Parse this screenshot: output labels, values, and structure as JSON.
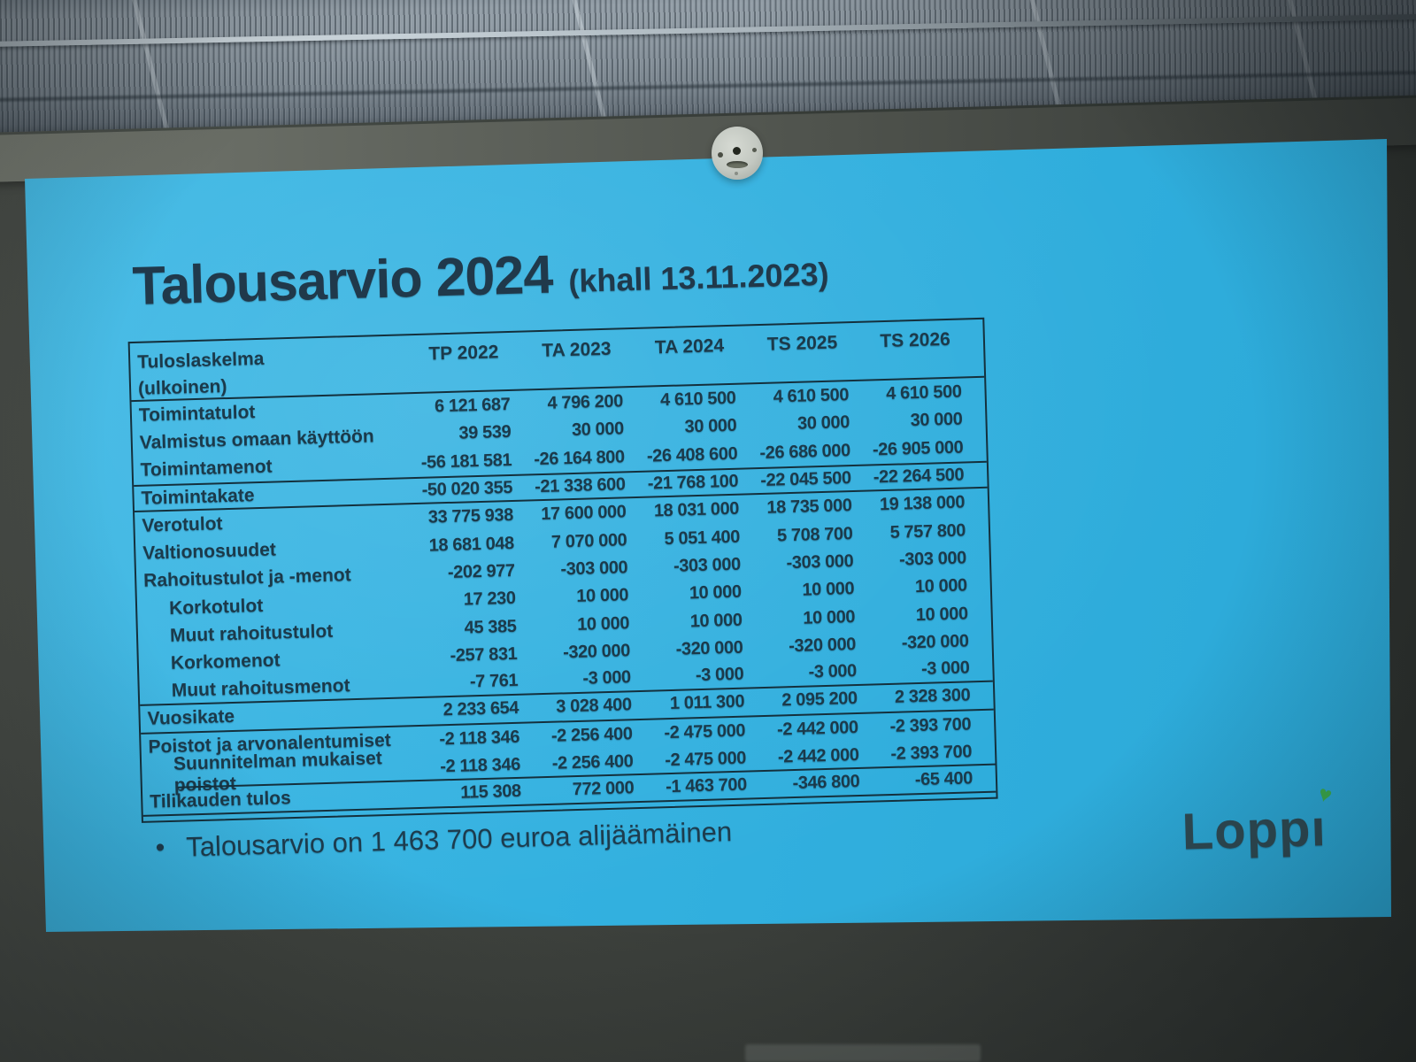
{
  "slide": {
    "title": "Talousarvio 2024",
    "title_suffix": "(khall 13.11.2023)",
    "bullet_text": "Talousarvio on 1 463 700 euroa alijäämäinen",
    "logo_text": "Loppi"
  },
  "table": {
    "header": {
      "label_line1": "Tuloslaskelma",
      "label_line2": "(ulkoinen)",
      "columns": [
        "TP 2022",
        "TA 2023",
        "TA 2024",
        "TS 2025",
        "TS 2026"
      ]
    },
    "rows": [
      {
        "label": "Toimintatulot",
        "values": [
          "6 121 687",
          "4 796 200",
          "4 610 500",
          "4 610 500",
          "4 610 500"
        ]
      },
      {
        "label": "Valmistus omaan käyttöön",
        "values": [
          "39 539",
          "30 000",
          "30 000",
          "30 000",
          "30 000"
        ]
      },
      {
        "label": "Toimintamenot",
        "values": [
          "-56 181 581",
          "-26 164 800",
          "-26 408 600",
          "-26 686 000",
          "-26 905 000"
        ]
      },
      {
        "label": "Toimintakate",
        "values": [
          "-50 020 355",
          "-21 338 600",
          "-21 768 100",
          "-22 045 500",
          "-22 264 500"
        ],
        "rules": "rt rb"
      },
      {
        "label": "Verotulot",
        "values": [
          "33 775 938",
          "17 600 000",
          "18 031 000",
          "18 735 000",
          "19 138 000"
        ]
      },
      {
        "label": "Valtionosuudet",
        "values": [
          "18 681 048",
          "7 070 000",
          "5 051 400",
          "5 708 700",
          "5 757 800"
        ]
      },
      {
        "label": "Rahoitustulot ja -menot",
        "values": [
          "-202 977",
          "-303 000",
          "-303 000",
          "-303 000",
          "-303 000"
        ]
      },
      {
        "label": "Korkotulot",
        "indent": true,
        "values": [
          "17 230",
          "10 000",
          "10 000",
          "10 000",
          "10 000"
        ]
      },
      {
        "label": "Muut rahoitustulot",
        "indent": true,
        "values": [
          "45 385",
          "10 000",
          "10 000",
          "10 000",
          "10 000"
        ]
      },
      {
        "label": "Korkomenot",
        "indent": true,
        "values": [
          "-257 831",
          "-320 000",
          "-320 000",
          "-320 000",
          "-320 000"
        ]
      },
      {
        "label": "Muut rahoitusmenot",
        "indent": true,
        "values": [
          "-7 761",
          "-3 000",
          "-3 000",
          "-3 000",
          "-3 000"
        ],
        "rules": "rb"
      },
      {
        "label": "Vuosikate",
        "values": [
          "2 233 654",
          "3 028 400",
          "1 011 300",
          "2 095 200",
          "2 328 300"
        ],
        "rules": "rb"
      },
      {
        "label": "Poistot ja arvonalentumiset",
        "values": [
          "-2 118 346",
          "-2 256 400",
          "-2 475 000",
          "-2 442 000",
          "-2 393 700"
        ]
      },
      {
        "label": "Suunnitelman mukaiset poistot",
        "indent": true,
        "values": [
          "-2 118 346",
          "-2 256 400",
          "-2 475 000",
          "-2 442 000",
          "-2 393 700"
        ],
        "rules": "rbi"
      },
      {
        "label": "Tilikauden tulos",
        "values": [
          "115 308",
          "772 000",
          "-1 463 700",
          "-346 800",
          "-65 400"
        ],
        "rules": "rb"
      }
    ]
  },
  "colors": {
    "screen_cyan": "#33b1e0",
    "slide_ink": "#1b3a4b",
    "table_border": "#14303d",
    "logo_heart_green": "#3cae4e",
    "wall_gray": "#3a3e3a"
  }
}
